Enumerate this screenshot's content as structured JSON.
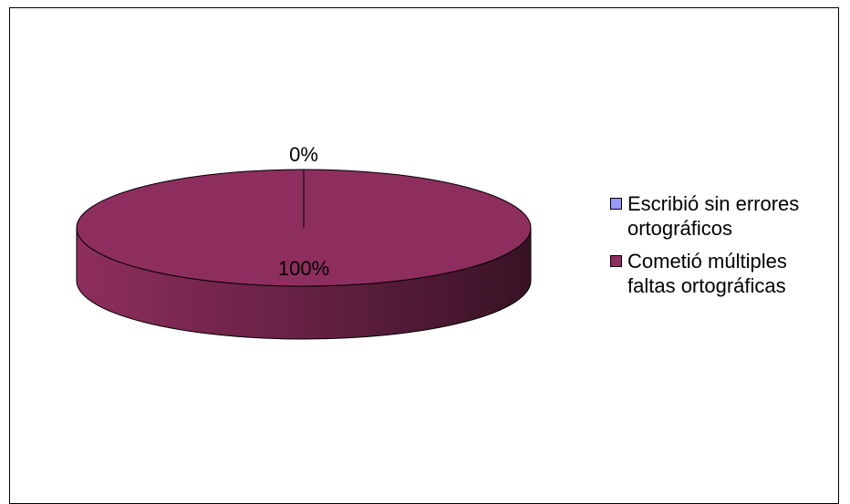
{
  "chart_data": {
    "type": "pie",
    "style": "3d",
    "title": "",
    "slices": [
      {
        "label": "Escribió sin errores ortográficos",
        "value": 0,
        "data_label": "0%",
        "color": "#9999ff"
      },
      {
        "label": "Cometió múltiples faltas ortográficas",
        "value": 100,
        "data_label": "100%",
        "color": "#8e2e5e"
      }
    ],
    "legend": {
      "position": "right",
      "items": [
        {
          "line1": "Escribió sin errores",
          "line2": "ortográficos",
          "color": "#9999ff"
        },
        {
          "line1": "Cometió múltiples",
          "line2": "faltas ortográficas",
          "color": "#8e2e5e"
        }
      ]
    }
  }
}
